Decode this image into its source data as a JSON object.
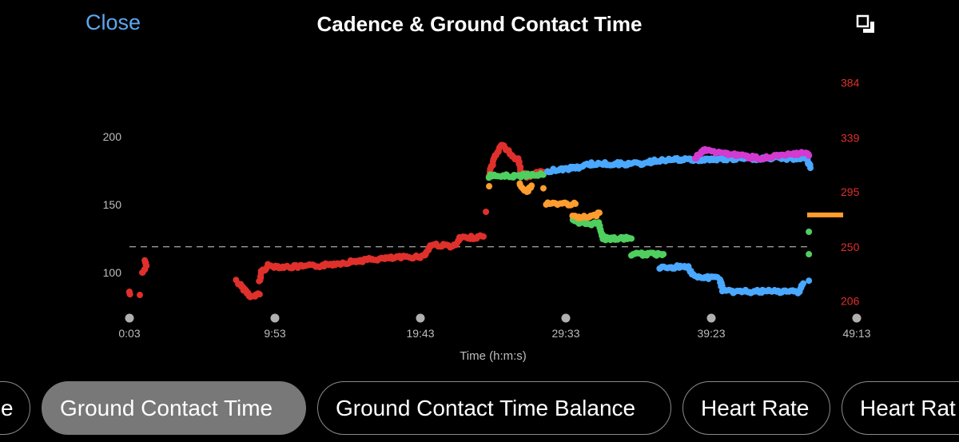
{
  "header": {
    "close_label": "Close",
    "title": "Cadence & Ground Contact Time",
    "fullscreen_icon": "exit-fullscreen-icon"
  },
  "tabs": [
    {
      "label": "e",
      "selected": false
    },
    {
      "label": "Ground Contact Time",
      "selected": true
    },
    {
      "label": "Ground Contact Time Balance",
      "selected": false
    },
    {
      "label": "Heart Rate",
      "selected": false
    },
    {
      "label": "Heart Rat",
      "selected": false
    }
  ],
  "chart_data": {
    "type": "scatter",
    "title": "Cadence & Ground Contact Time",
    "xlabel": "Time (h:m:s)",
    "x_ticks": [
      "0:03",
      "9:53",
      "19:43",
      "29:33",
      "39:23",
      "49:13"
    ],
    "y_left_ticks": [
      100,
      150,
      200
    ],
    "y_left_range": [
      78,
      240
    ],
    "y_right_ticks": [
      206,
      250,
      295,
      339,
      384
    ],
    "y_right_color": "#e0302c",
    "reference_line": {
      "value_left": 119,
      "value_right": 250,
      "style": "dashed",
      "color": "#9a9a9a"
    },
    "grid": false,
    "colors": {
      "red": "#e0302c",
      "orange": "#ff9d2e",
      "green": "#4fcf5f",
      "blue": "#4aa8ff",
      "magenta": "#d33ad0"
    },
    "series": [
      {
        "color": "red",
        "segments": [
          [
            [
              "0:03",
              86
            ],
            [
              "0:05",
              84
            ]
          ],
          [
            [
              "0:45",
              83.5
            ]
          ],
          [
            [
              "0:55",
              100
            ],
            [
              "1:11",
              104
            ],
            [
              "1:05",
              109
            ]
          ],
          [
            [
              "7:17",
              93.5
            ],
            [
              "7:47",
              88
            ],
            [
              "8:19",
              82
            ],
            [
              "8:51",
              84
            ]
          ],
          [
            [
              "8:51",
              93.5
            ],
            [
              "8:58",
              100.5
            ],
            [
              "9:24",
              105
            ],
            [
              "10:45",
              104
            ],
            [
              "12:55",
              105
            ],
            [
              "13:59",
              106.5
            ],
            [
              "16:09",
              109.4
            ],
            [
              "18:19",
              111
            ],
            [
              "19:56",
              112
            ],
            [
              "20:28",
              120.6
            ],
            [
              "22:06",
              119.4
            ],
            [
              "22:22",
              125
            ],
            [
              "23:59",
              126.5
            ]
          ],
          [
            [
              "24:09",
              144.7
            ]
          ],
          [
            [
              "24:22",
              172
            ],
            [
              "24:48",
              186
            ],
            [
              "25:14",
              194.7
            ],
            [
              "25:53",
              186
            ],
            [
              "26:19",
              183
            ],
            [
              "26:32",
              174
            ],
            [
              "26:57",
              171
            ],
            [
              "28:02",
              174
            ]
          ]
        ]
      },
      {
        "color": "green",
        "segments": [
          [
            [
              "24:22",
              171
            ],
            [
              "26:25",
              171
            ],
            [
              "26:57",
              172
            ],
            [
              "28:02",
              172
            ]
          ],
          [
            [
              "30:02",
              138
            ],
            [
              "30:28",
              136
            ],
            [
              "31:49",
              136
            ],
            [
              "31:56",
              130
            ],
            [
              "32:05",
              125
            ],
            [
              "33:59",
              125
            ]
          ],
          [
            [
              "33:59",
              113.5
            ],
            [
              "36:09",
              113.5
            ]
          ],
          [
            [
              "45:59",
              130
            ]
          ],
          [
            [
              "45:59",
              113.5
            ]
          ]
        ]
      },
      {
        "color": "orange",
        "segments": [
          [
            [
              "24:22",
              163.5
            ]
          ],
          [
            [
              "26:25",
              166
            ],
            [
              "26:55",
              159
            ],
            [
              "27:14",
              164
            ]
          ],
          [
            [
              "28:02",
              162
            ]
          ],
          [
            [
              "28:12",
              150.6
            ],
            [
              "30:12",
              150.6
            ]
          ],
          [
            [
              "30:02",
              140.6
            ],
            [
              "31:01",
              140.6
            ],
            [
              "31:33",
              141.8
            ],
            [
              "31:49",
              144
            ]
          ]
        ]
      },
      {
        "color": "blue",
        "segments": [
          [
            [
              "28:19",
              175
            ],
            [
              "30:12",
              177
            ],
            [
              "31:17",
              180
            ],
            [
              "34:31",
              180
            ],
            [
              "36:09",
              183
            ],
            [
              "37:46",
              183
            ],
            [
              "38:18",
              183
            ],
            [
              "43:10",
              184
            ],
            [
              "45:52",
              184
            ],
            [
              "45:59",
              180
            ],
            [
              "46:05",
              177
            ]
          ],
          [
            [
              "35:52",
              103.5
            ],
            [
              "37:46",
              104.7
            ],
            [
              "38:18",
              96.5
            ],
            [
              "39:56",
              96
            ],
            [
              "40:12",
              86
            ],
            [
              "45:20",
              86
            ],
            [
              "45:36",
              92
            ]
          ],
          [
            [
              "45:59",
              94
            ]
          ]
        ]
      },
      {
        "color": "magenta",
        "segments": [
          [
            [
              "38:18",
              184
            ],
            [
              "38:51",
              190
            ],
            [
              "42:38",
              184
            ],
            [
              "45:52",
              188
            ],
            [
              "45:59",
              186
            ]
          ]
        ]
      }
    ],
    "end_marker": {
      "color": "orange",
      "value_left": 142.4,
      "from": "45:52",
      "to": "48:18"
    }
  }
}
